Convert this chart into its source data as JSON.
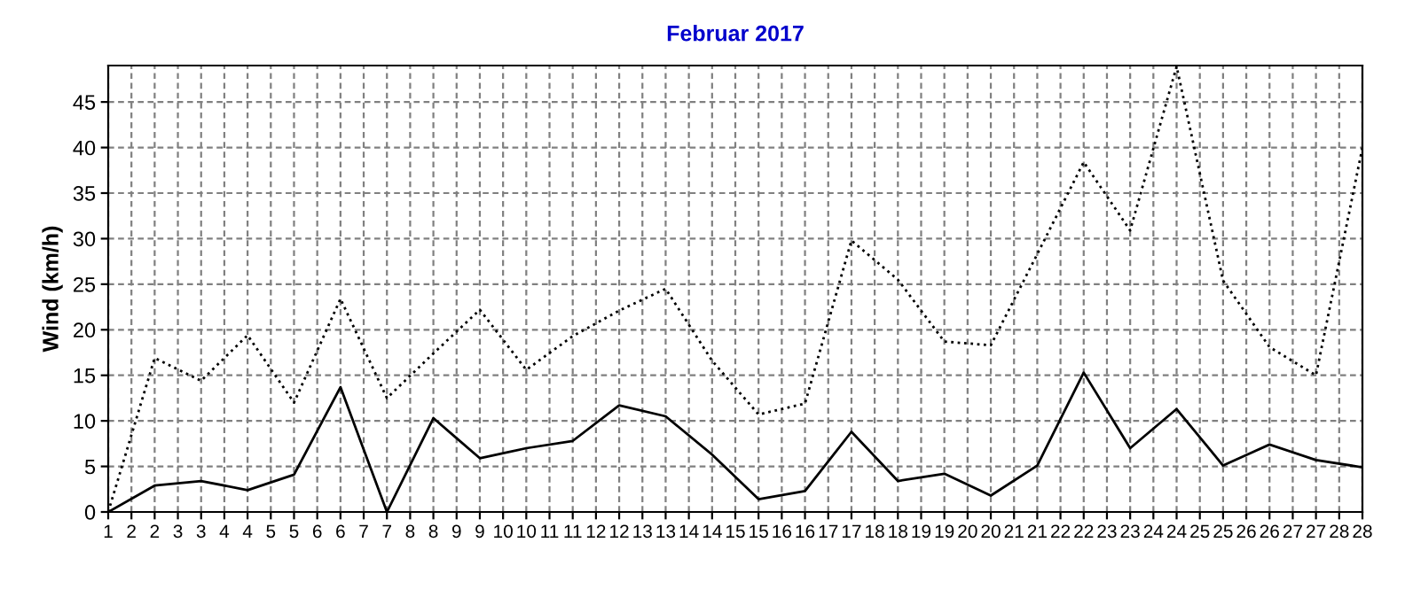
{
  "chart_data": {
    "type": "line",
    "title": "Februar 2017",
    "ylabel": "Wind (km/h)",
    "x": [
      1,
      2,
      3,
      4,
      5,
      6,
      7,
      8,
      9,
      10,
      11,
      12,
      13,
      14,
      15,
      16,
      17,
      18,
      19,
      20,
      21,
      22,
      23,
      24,
      25,
      26,
      27,
      28
    ],
    "series": [
      {
        "color": "#000000",
        "line_style": "dotted",
        "values": [
          0,
          16.9,
          14.4,
          19.4,
          12.0,
          23.4,
          12.5,
          17.4,
          22.2,
          15.6,
          19.3,
          22.1,
          24.5,
          16.6,
          10.7,
          11.9,
          29.8,
          25.5,
          18.7,
          18.3,
          28.3,
          38.4,
          30.9,
          48.9,
          25.4,
          18.1,
          15.0,
          40.0
        ]
      },
      {
        "color": "#000000",
        "line_style": "solid",
        "values": [
          0,
          2.9,
          3.4,
          2.4,
          4.1,
          13.7,
          0,
          10.3,
          5.9,
          7.0,
          7.8,
          11.7,
          10.5,
          6.3,
          1.4,
          2.3,
          8.8,
          3.4,
          4.2,
          1.8,
          5.1,
          15.3,
          7.0,
          11.3,
          5.1,
          7.4,
          5.7,
          4.9
        ]
      }
    ],
    "xlim": [
      1,
      28
    ],
    "xticks": [
      1,
      {
        "value": 1.5,
        "label": "2"
      },
      2,
      {
        "value": 2.5,
        "label": "3"
      },
      3,
      {
        "value": 3.5,
        "label": "4"
      },
      4,
      {
        "value": 4.5,
        "label": "5"
      },
      5,
      {
        "value": 5.5,
        "label": "6"
      },
      6,
      {
        "value": 6.5,
        "label": "7"
      },
      7,
      {
        "value": 7.5,
        "label": "8"
      },
      8,
      {
        "value": 8.5,
        "label": "9"
      },
      9,
      {
        "value": 9.5,
        "label": "10"
      },
      10,
      {
        "value": 10.5,
        "label": "11"
      },
      11,
      {
        "value": 11.5,
        "label": "12"
      },
      12,
      {
        "value": 12.5,
        "label": "13"
      },
      13,
      {
        "value": 13.5,
        "label": "14"
      },
      14,
      {
        "value": 14.5,
        "label": "15"
      },
      15,
      {
        "value": 15.5,
        "label": "16"
      },
      16,
      {
        "value": 16.5,
        "label": "17"
      },
      17,
      {
        "value": 17.5,
        "label": "18"
      },
      18,
      {
        "value": 18.5,
        "label": "19"
      },
      19,
      {
        "value": 19.5,
        "label": "20"
      },
      20,
      {
        "value": 20.5,
        "label": "21"
      },
      21,
      {
        "value": 21.5,
        "label": "22"
      },
      22,
      {
        "value": 22.5,
        "label": "23"
      },
      23,
      {
        "value": 23.5,
        "label": "24"
      },
      24,
      {
        "value": 24.5,
        "label": "25"
      },
      25,
      {
        "value": 25.5,
        "label": "26"
      },
      26,
      {
        "value": 26.5,
        "label": "27"
      },
      27,
      {
        "value": 27.5,
        "label": "28"
      },
      28
    ],
    "ylim": [
      0,
      49
    ],
    "yticks": [
      0,
      5,
      10,
      15,
      20,
      25,
      30,
      35,
      40,
      45
    ],
    "grid": true,
    "marker": "none"
  }
}
